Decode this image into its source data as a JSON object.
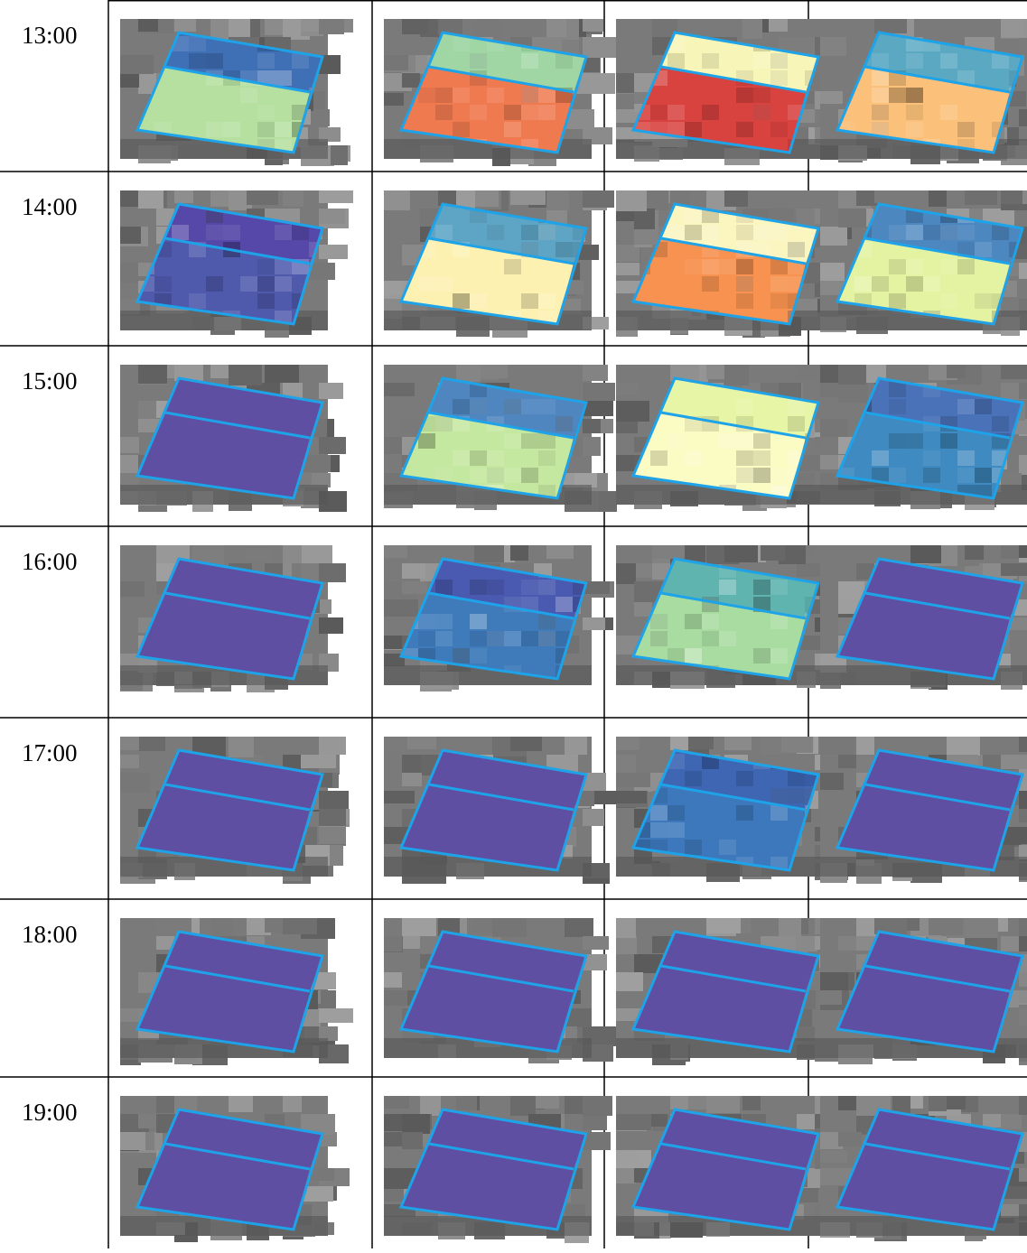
{
  "table": {
    "rows": [
      {
        "time": "13:00"
      },
      {
        "time": "14:00"
      },
      {
        "time": "15:00"
      },
      {
        "time": "16:00"
      },
      {
        "time": "17:00"
      },
      {
        "time": "18:00"
      },
      {
        "time": "19:00"
      }
    ]
  }
}
